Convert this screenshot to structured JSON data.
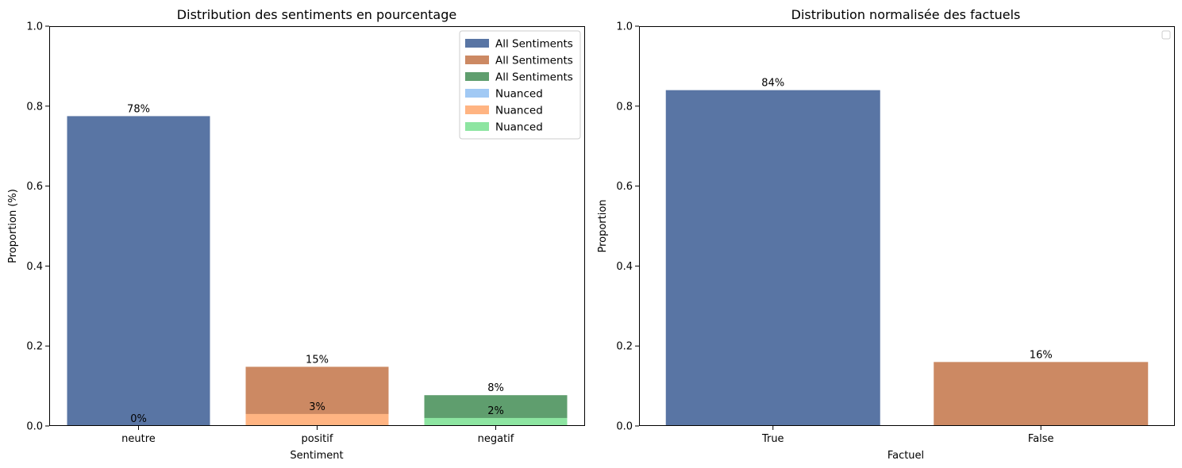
{
  "chart_data": [
    {
      "type": "bar",
      "title": "Distribution des sentiments en pourcentage",
      "xlabel": "Sentiment",
      "ylabel": "Proportion (%)",
      "ylim": [
        0,
        1.0
      ],
      "yticks": [
        "0.0",
        "0.2",
        "0.4",
        "0.6",
        "0.8",
        "1.0"
      ],
      "categories": [
        "neutre",
        "positif",
        "negatif"
      ],
      "series": [
        {
          "name": "All Sentiments",
          "values": [
            0.775,
            0.148,
            0.077
          ],
          "labels": [
            "78%",
            "15%",
            "8%"
          ],
          "colors": [
            "#5975a4",
            "#cc8963",
            "#5f9e6e"
          ]
        },
        {
          "name": "Nuanced",
          "values": [
            0.0,
            0.03,
            0.02
          ],
          "labels": [
            "0%",
            "3%",
            "2%"
          ],
          "colors": [
            "#a1c9f4",
            "#ffb482",
            "#8de5a1"
          ]
        }
      ],
      "legend": {
        "position": "top-right",
        "entries": [
          {
            "label": "All Sentiments",
            "color": "#5975a4"
          },
          {
            "label": "All Sentiments",
            "color": "#cc8963"
          },
          {
            "label": "All Sentiments",
            "color": "#5f9e6e"
          },
          {
            "label": "Nuanced",
            "color": "#a1c9f4"
          },
          {
            "label": "Nuanced",
            "color": "#ffb482"
          },
          {
            "label": "Nuanced",
            "color": "#8de5a1"
          }
        ]
      }
    },
    {
      "type": "bar",
      "title": "Distribution normalisée des factuels",
      "xlabel": "Factuel",
      "ylabel": "Proportion",
      "ylim": [
        0,
        1.0
      ],
      "yticks": [
        "0.0",
        "0.2",
        "0.4",
        "0.6",
        "0.8",
        "1.0"
      ],
      "categories": [
        "True",
        "False"
      ],
      "series": [
        {
          "values": [
            0.84,
            0.16
          ],
          "labels": [
            "84%",
            "16%"
          ],
          "colors": [
            "#5975a4",
            "#cc8963"
          ]
        }
      ],
      "legend": {
        "position": "top-right",
        "entries": []
      }
    }
  ]
}
